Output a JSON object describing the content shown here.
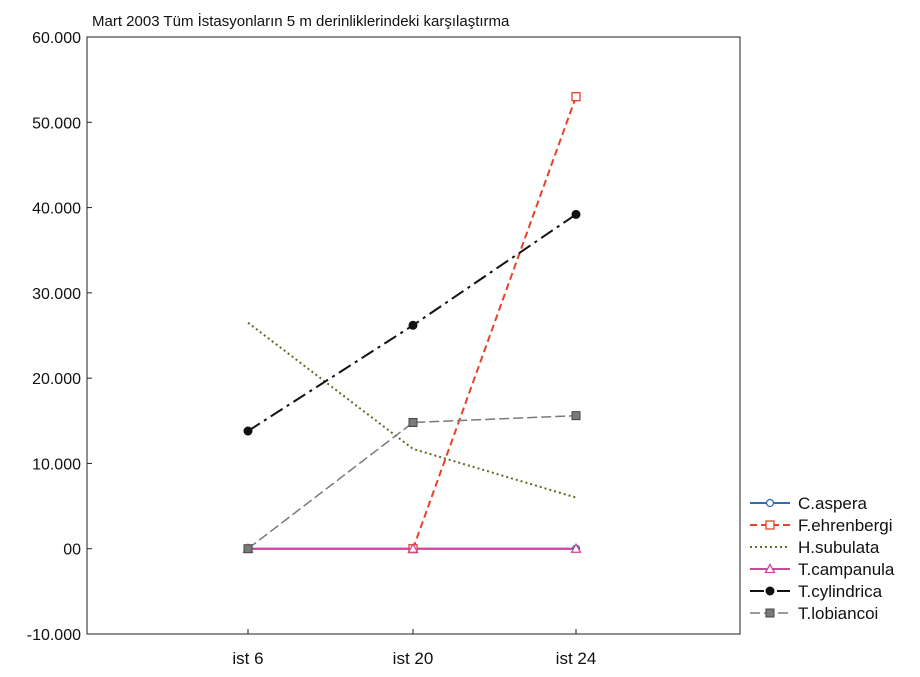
{
  "chart_data": {
    "type": "line",
    "title": "Mart 2003 Tüm İstasyonların 5 m derinliklerindeki karşılaştırma",
    "xlabel": "",
    "ylabel": "",
    "categories": [
      "ist 6",
      "ist 20",
      "ist 24"
    ],
    "ylim": [
      -10000,
      60000
    ],
    "yticks": [
      {
        "value": 60000,
        "label": "60.000"
      },
      {
        "value": 50000,
        "label": "50.000"
      },
      {
        "value": 40000,
        "label": "40.000"
      },
      {
        "value": 30000,
        "label": "30.000"
      },
      {
        "value": 20000,
        "label": "20.000"
      },
      {
        "value": 10000,
        "label": "10.000"
      },
      {
        "value": 0,
        "label": "00"
      },
      {
        "value": -10000,
        "label": "-10.000"
      }
    ],
    "grid": false,
    "legend_position": "right",
    "series": [
      {
        "name": "C.aspera",
        "values": [
          0,
          0,
          0
        ],
        "color": "#2e6fb0",
        "dash": "",
        "marker": "circle-open",
        "width": 2
      },
      {
        "name": "F.ehrenbergi",
        "values": [
          null,
          0,
          53000
        ],
        "color": "#e8412a",
        "dash": "7 4",
        "marker": "square-open",
        "width": 2
      },
      {
        "name": "H.subulata",
        "values": [
          26500,
          11700,
          6000
        ],
        "color": "#5f6b1e",
        "dash": "2 3",
        "marker": "none",
        "width": 2
      },
      {
        "name": "T.campanula",
        "values": [
          0,
          0,
          0
        ],
        "color": "#d4449a",
        "dash": "",
        "marker": "triangle-open",
        "width": 2
      },
      {
        "name": "T.cylindrica",
        "values": [
          13800,
          26200,
          39200
        ],
        "color": "#111111",
        "dash": "14 5 3 5",
        "marker": "circle-filled",
        "width": 2
      },
      {
        "name": "T.lobiancoi",
        "values": [
          0,
          14800,
          15600
        ],
        "color": "#7a7a7a",
        "dash": "10 4",
        "marker": "square-filled",
        "width": 1.5
      }
    ]
  }
}
